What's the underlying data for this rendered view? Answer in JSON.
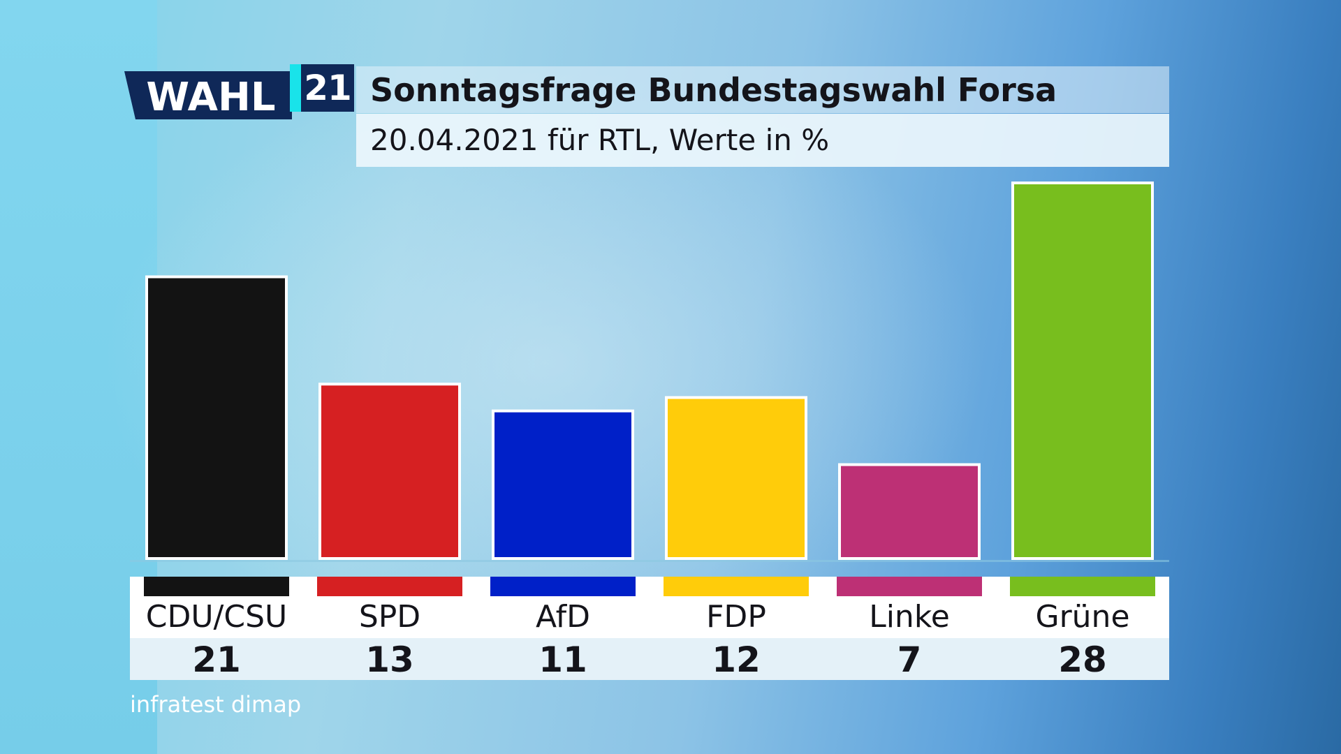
{
  "logo": {
    "wahl_text": "WAHL",
    "year_text": "21"
  },
  "header": {
    "title": "Sonntagsfrage Bundestagswahl Forsa",
    "subtitle": "20.04.2021 für RTL, Werte in %"
  },
  "source": "infratest dimap",
  "chart_data": {
    "type": "bar",
    "categories": [
      "CDU/CSU",
      "SPD",
      "AfD",
      "FDP",
      "Linke",
      "Grüne"
    ],
    "values": [
      21,
      13,
      11,
      12,
      7,
      28
    ],
    "colors": [
      "#131313",
      "#d62022",
      "#0020c8",
      "#ffcc0a",
      "#bd3075",
      "#78be1e"
    ],
    "value_labels": [
      "21",
      "13",
      "11",
      "12",
      "7",
      "28"
    ],
    "title": "Sonntagsfrage Bundestagswahl Forsa",
    "subtitle": "20.04.2021 für RTL, Werte in %",
    "ylim": [
      0,
      28
    ],
    "grid": false
  }
}
